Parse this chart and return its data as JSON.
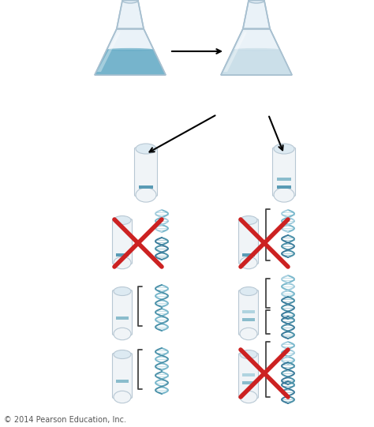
{
  "background_color": "#ffffff",
  "copyright_text": "© 2014 Pearson Education, Inc.",
  "copyright_fontsize": 7,
  "flask1_color_liquid": "#6aaec8",
  "flask2_color_liquid": "#c8dde8",
  "cross_color": "#cc2222",
  "dna_color1": "#7ab8cc",
  "dna_color2": "#4a90a8",
  "dna_color_dark1": "#3a7a9a",
  "dna_color_dark2": "#2a6a8a",
  "tube_fill": "#f0f4f7",
  "tube_outline": "#b8c8d4",
  "band_dark": "#5a9bb5",
  "band_mid": "#8abccc",
  "band_light": "#b0d4e0",
  "flask_outline": "#a8c0d0",
  "flask_fill": "#eaf2f8"
}
